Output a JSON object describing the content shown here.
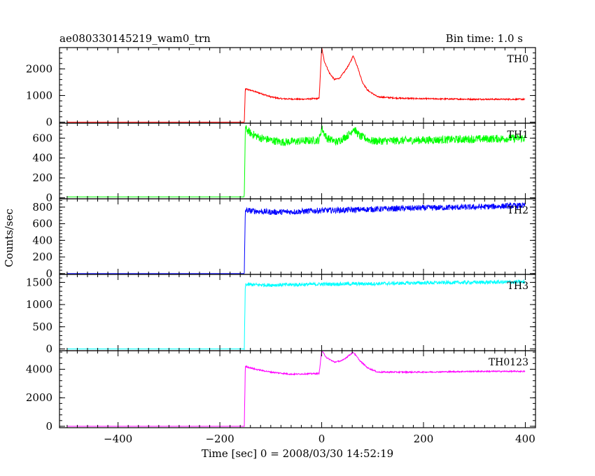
{
  "chart_data": {
    "type": "line",
    "title": "ae080330145219_wam0_trn",
    "subtitle": "Bin time: 1.0 s",
    "xlabel": "Time [sec] 0 = 2008/03/30 14:52:19",
    "ylabel": "Counts/sec",
    "xlim": [
      -515,
      420
    ],
    "x_ticks": [
      -400,
      -200,
      0,
      200,
      400
    ],
    "x_tick_labels": [
      "−400",
      "−200",
      "0",
      "200",
      "400"
    ],
    "bin_time_s": 1.0,
    "grid": false,
    "series": [
      {
        "name": "TH0",
        "color": "#ff0000",
        "ylim": [
          -40,
          2800
        ],
        "yticks": [
          0,
          1000,
          2000
        ],
        "ytick_labels": [
          "0",
          "1000",
          "2000"
        ],
        "noise": 25,
        "points": [
          [
            -500,
            0
          ],
          [
            -152,
            0
          ],
          [
            -150,
            1250
          ],
          [
            -140,
            1200
          ],
          [
            -120,
            1080
          ],
          [
            -100,
            950
          ],
          [
            -80,
            880
          ],
          [
            -40,
            860
          ],
          [
            -5,
            890
          ],
          [
            0,
            2800
          ],
          [
            5,
            2300
          ],
          [
            15,
            1850
          ],
          [
            25,
            1600
          ],
          [
            35,
            1650
          ],
          [
            45,
            1900
          ],
          [
            55,
            2200
          ],
          [
            62,
            2500
          ],
          [
            70,
            2100
          ],
          [
            80,
            1500
          ],
          [
            90,
            1200
          ],
          [
            110,
            950
          ],
          [
            150,
            900
          ],
          [
            200,
            880
          ],
          [
            300,
            860
          ],
          [
            400,
            860
          ]
        ]
      },
      {
        "name": "TH1",
        "color": "#00ff00",
        "ylim": [
          -10,
          750
        ],
        "yticks": [
          0,
          200,
          400,
          600
        ],
        "ytick_labels": [
          "0",
          "200",
          "400",
          "600"
        ],
        "noise": 40,
        "points": [
          [
            -500,
            10
          ],
          [
            -152,
            10
          ],
          [
            -150,
            700
          ],
          [
            -140,
            650
          ],
          [
            -120,
            600
          ],
          [
            -80,
            560
          ],
          [
            -40,
            570
          ],
          [
            -5,
            580
          ],
          [
            0,
            700
          ],
          [
            10,
            600
          ],
          [
            30,
            560
          ],
          [
            55,
            640
          ],
          [
            62,
            700
          ],
          [
            75,
            620
          ],
          [
            100,
            570
          ],
          [
            200,
            580
          ],
          [
            300,
            590
          ],
          [
            400,
            600
          ]
        ]
      },
      {
        "name": "TH2",
        "color": "#0000ff",
        "ylim": [
          -10,
          900
        ],
        "yticks": [
          0,
          200,
          400,
          600,
          800
        ],
        "ytick_labels": [
          "0",
          "200",
          "400",
          "600",
          "800"
        ],
        "noise": 35,
        "points": [
          [
            -500,
            0
          ],
          [
            -152,
            0
          ],
          [
            -150,
            760
          ],
          [
            -100,
            740
          ],
          [
            -50,
            745
          ],
          [
            0,
            760
          ],
          [
            50,
            765
          ],
          [
            100,
            775
          ],
          [
            200,
            790
          ],
          [
            300,
            800
          ],
          [
            400,
            820
          ]
        ]
      },
      {
        "name": "TH3",
        "color": "#00ffff",
        "ylim": [
          -40,
          1680
        ],
        "yticks": [
          0,
          500,
          1000,
          1500
        ],
        "ytick_labels": [
          "0",
          "500",
          "1000",
          "1500"
        ],
        "noise": 40,
        "points": [
          [
            -500,
            0
          ],
          [
            -152,
            0
          ],
          [
            -150,
            1450
          ],
          [
            -100,
            1440
          ],
          [
            0,
            1460
          ],
          [
            100,
            1470
          ],
          [
            200,
            1490
          ],
          [
            300,
            1500
          ],
          [
            400,
            1510
          ]
        ]
      },
      {
        "name": "TH0123",
        "color": "#ff00ff",
        "ylim": [
          -100,
          5300
        ],
        "yticks": [
          0,
          2000,
          4000
        ],
        "ytick_labels": [
          "0",
          "2000",
          "4000"
        ],
        "noise": 45,
        "points": [
          [
            -500,
            0
          ],
          [
            -152,
            0
          ],
          [
            -150,
            4200
          ],
          [
            -130,
            4000
          ],
          [
            -100,
            3800
          ],
          [
            -60,
            3650
          ],
          [
            -5,
            3700
          ],
          [
            0,
            5300
          ],
          [
            10,
            4800
          ],
          [
            25,
            4500
          ],
          [
            40,
            4600
          ],
          [
            55,
            5000
          ],
          [
            62,
            5200
          ],
          [
            75,
            4600
          ],
          [
            90,
            4100
          ],
          [
            110,
            3800
          ],
          [
            200,
            3800
          ],
          [
            300,
            3850
          ],
          [
            400,
            3850
          ]
        ]
      }
    ]
  }
}
